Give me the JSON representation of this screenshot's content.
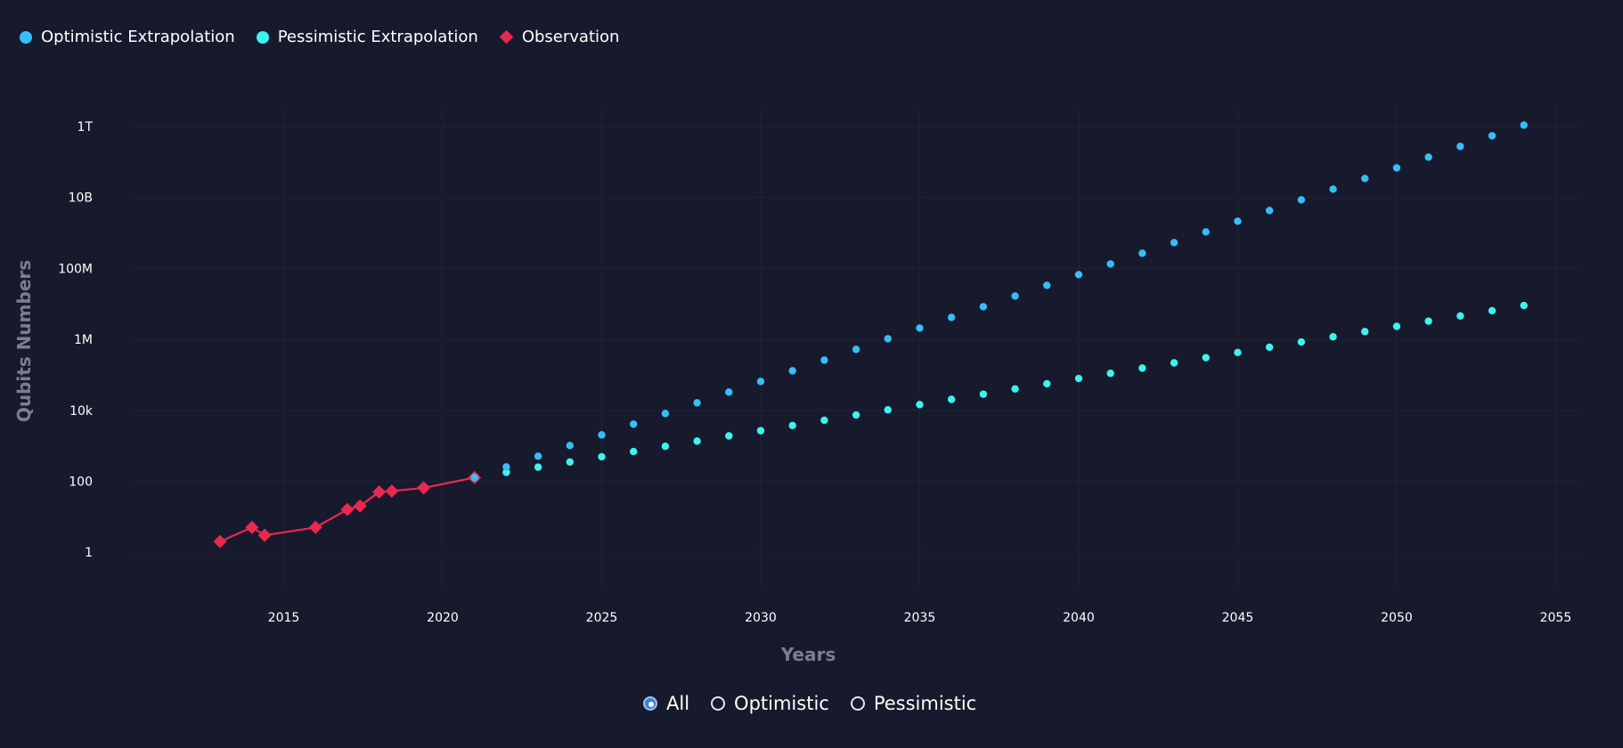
{
  "legend": [
    {
      "label": "Optimistic Extrapolation",
      "marker": "circle",
      "color": "#38bdf8"
    },
    {
      "label": "Pessimistic Extrapolation",
      "marker": "circle",
      "color": "#3ef2f0"
    },
    {
      "label": "Observation",
      "marker": "diamond",
      "color": "#e8294f"
    }
  ],
  "controls": {
    "options": [
      {
        "label": "All",
        "checked": true
      },
      {
        "label": "Optimistic",
        "checked": false
      },
      {
        "label": "Pessimistic",
        "checked": false
      }
    ]
  },
  "chart_data": {
    "type": "scatter",
    "xlabel": "Years",
    "ylabel": "Qubits Numbers",
    "x_scale": "linear",
    "y_scale": "log",
    "xlim": [
      2010.0,
      2055.8
    ],
    "ylim": [
      0.1,
      2000000000000.0
    ],
    "x_ticks": [
      2015,
      2020,
      2025,
      2030,
      2035,
      2040,
      2045,
      2050,
      2055
    ],
    "x_tick_labels": [
      "2015",
      "2020",
      "2025",
      "2030",
      "2035",
      "2040",
      "2045",
      "2050",
      "2055"
    ],
    "y_ticks": [
      1,
      100,
      10000,
      1000000,
      100000000,
      10000000000,
      1000000000000
    ],
    "y_tick_labels": [
      "1",
      "100",
      "10k",
      "1M",
      "100M",
      "10B",
      "1T"
    ],
    "grid": true,
    "legend_position": "top-left",
    "series": [
      {
        "name": "Optimistic Extrapolation",
        "color": "#38bdf8",
        "mode": "markers",
        "x": [
          2021,
          2022,
          2023,
          2024,
          2025,
          2026,
          2027,
          2028,
          2029,
          2030,
          2031,
          2032,
          2033,
          2034,
          2035,
          2036,
          2037,
          2038,
          2039,
          2040,
          2041,
          2042,
          2043,
          2044,
          2045,
          2046,
          2047,
          2048,
          2049,
          2050,
          2051,
          2052,
          2053,
          2054
        ],
        "y": [
          127,
          254,
          508,
          1016,
          2032,
          4064,
          8128,
          16256,
          32512,
          65024,
          130048,
          260096,
          520192,
          1040384,
          2080768,
          4161536,
          8323072,
          16646144,
          33292288,
          66584576,
          133169152,
          266338304,
          532676608,
          1065353216,
          2130706432,
          4261412864,
          8522825728,
          17045651456,
          34091302912,
          68182605824,
          136365211648,
          272730423296,
          545460846592,
          1090921693184
        ]
      },
      {
        "name": "Pessimistic Extrapolation",
        "color": "#3ef2f0",
        "mode": "markers",
        "x": [
          2021,
          2022,
          2023,
          2024,
          2025,
          2026,
          2027,
          2028,
          2029,
          2030,
          2031,
          2032,
          2033,
          2034,
          2035,
          2036,
          2037,
          2038,
          2039,
          2040,
          2041,
          2042,
          2043,
          2044,
          2045,
          2046,
          2047,
          2048,
          2049,
          2050,
          2051,
          2052,
          2053,
          2054
        ],
        "y": [
          127,
          178,
          250,
          350,
          491,
          689,
          966,
          1355,
          1901,
          2666,
          3739,
          5245,
          7357,
          10320,
          14476,
          20307,
          28486,
          39959,
          56054,
          78631,
          110302,
          154729,
          217051,
          304475,
          427113,
          599150,
          840496,
          1179051,
          1653977,
          2320197,
          3254774,
          4565805,
          6404924,
          8984841
        ]
      },
      {
        "name": "Observation",
        "color": "#e8294f",
        "mode": "lines+markers",
        "x": [
          2013.0,
          2014.0,
          2014.4,
          2016.0,
          2017.0,
          2017.4,
          2018.0,
          2018.4,
          2019.4,
          2021.0
        ],
        "y": [
          2,
          5,
          3,
          5,
          16,
          20,
          50,
          53,
          65,
          127
        ]
      }
    ]
  }
}
